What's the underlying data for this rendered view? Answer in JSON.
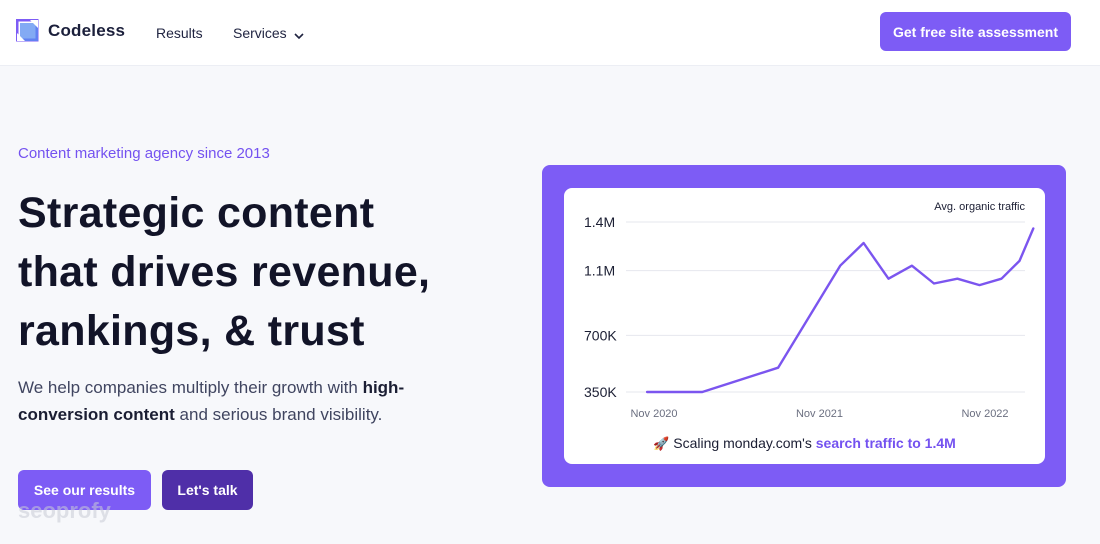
{
  "header": {
    "brand": "Codeless",
    "nav": {
      "results": "Results",
      "services": "Services"
    },
    "cta": "Get free site assessment"
  },
  "hero": {
    "eyebrow": "Content marketing agency since 2013",
    "headline_lines": [
      "Strategic content",
      "that drives revenue,",
      "rankings, & trust"
    ],
    "sub_pre": "We help companies multiply their growth with ",
    "sub_bold": "high-conversion content",
    "sub_post": " and serious brand visibility.",
    "btn_results": "See our results",
    "btn_talk": "Let's talk",
    "watermark": "seoprofy"
  },
  "caption": {
    "emoji": "🚀",
    "pre": " Scaling monday.com's ",
    "highlight": "search traffic to 1.4M"
  },
  "colors": {
    "accent": "#7d5cf5",
    "accent_dark": "#4f2fa8",
    "line": "#7b55ef"
  },
  "icons": {
    "logo": "codeless-logo-icon",
    "services_caret": "chevron-down-icon"
  },
  "chart_data": {
    "type": "line",
    "title": "",
    "legend": "Avg. organic traffic",
    "y_ticks": [
      {
        "label": "1.4M",
        "value": 1400000
      },
      {
        "label": "1.1M",
        "value": 1100000
      },
      {
        "label": "700K",
        "value": 700000
      },
      {
        "label": "350K",
        "value": 350000
      }
    ],
    "x_ticks": [
      {
        "label": "Nov 2020",
        "x": 0
      },
      {
        "label": "Nov 2021",
        "x": 12
      },
      {
        "label": "Nov 2022",
        "x": 24
      }
    ],
    "xlim": [
      0,
      27
    ],
    "series": [
      {
        "name": "Avg. organic traffic",
        "points": [
          [
            -0.5,
            350000
          ],
          [
            3.5,
            350000
          ],
          [
            9,
            500000
          ],
          [
            13.5,
            1130000
          ],
          [
            15.2,
            1270000
          ],
          [
            17,
            1050000
          ],
          [
            18.7,
            1130000
          ],
          [
            20.3,
            1020000
          ],
          [
            22,
            1050000
          ],
          [
            23.6,
            1010000
          ],
          [
            25.2,
            1050000
          ],
          [
            26.5,
            1160000
          ],
          [
            27.5,
            1360000
          ]
        ]
      }
    ]
  }
}
